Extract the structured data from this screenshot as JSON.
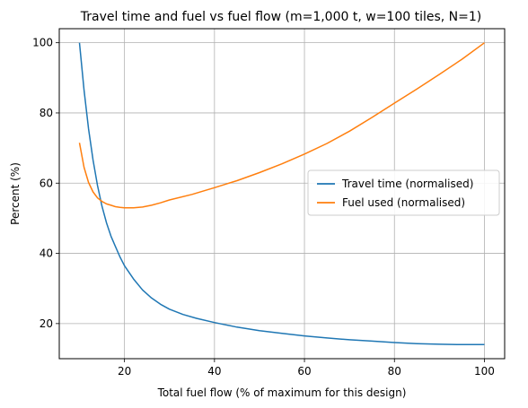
{
  "chart_data": {
    "type": "line",
    "title": "Travel time and fuel vs fuel flow (m=1,000 t, w=100 tiles, N=1)",
    "xlabel": "Total fuel flow (% of maximum for this design)",
    "ylabel": "Percent (%)",
    "xlim": [
      5.5,
      104.5
    ],
    "ylim": [
      10,
      104
    ],
    "xticks": [
      20,
      40,
      60,
      80,
      100
    ],
    "yticks": [
      20,
      40,
      60,
      80,
      100
    ],
    "grid": true,
    "legend_position": "center-right",
    "series": [
      {
        "name": "Travel time (normalised)",
        "color": "#1f77b4",
        "x": [
          10,
          11,
          12,
          13,
          14,
          15,
          16,
          17,
          18,
          19,
          20,
          22,
          24,
          26,
          28,
          30,
          33,
          36,
          40,
          45,
          50,
          55,
          60,
          65,
          70,
          75,
          80,
          85,
          90,
          95,
          100
        ],
        "y": [
          100,
          86.5,
          75.5,
          66.6,
          59.3,
          53.4,
          48.7,
          44.9,
          41.9,
          39.0,
          36.5,
          32.7,
          29.6,
          27.3,
          25.5,
          24.1,
          22.6,
          21.5,
          20.3,
          19.0,
          18.0,
          17.2,
          16.5,
          15.9,
          15.4,
          15.0,
          14.6,
          14.3,
          14.1,
          14.0,
          14.0
        ]
      },
      {
        "name": "Fuel used (normalised)",
        "color": "#ff7f0e",
        "x": [
          10,
          11,
          12,
          13,
          14,
          15,
          16,
          17,
          18,
          19,
          20,
          21,
          22,
          24,
          26,
          28,
          30,
          35,
          40,
          45,
          50,
          55,
          60,
          65,
          70,
          75,
          80,
          85,
          90,
          95,
          100
        ],
        "y": [
          71.5,
          64.5,
          60.2,
          57.5,
          55.8,
          54.8,
          54.1,
          53.7,
          53.3,
          53.1,
          53.0,
          53.0,
          53.0,
          53.2,
          53.7,
          54.4,
          55.2,
          56.8,
          58.7,
          60.7,
          63.0,
          65.5,
          68.3,
          71.3,
          74.8,
          78.7,
          82.8,
          86.8,
          91.0,
          95.3,
          100
        ]
      }
    ]
  }
}
